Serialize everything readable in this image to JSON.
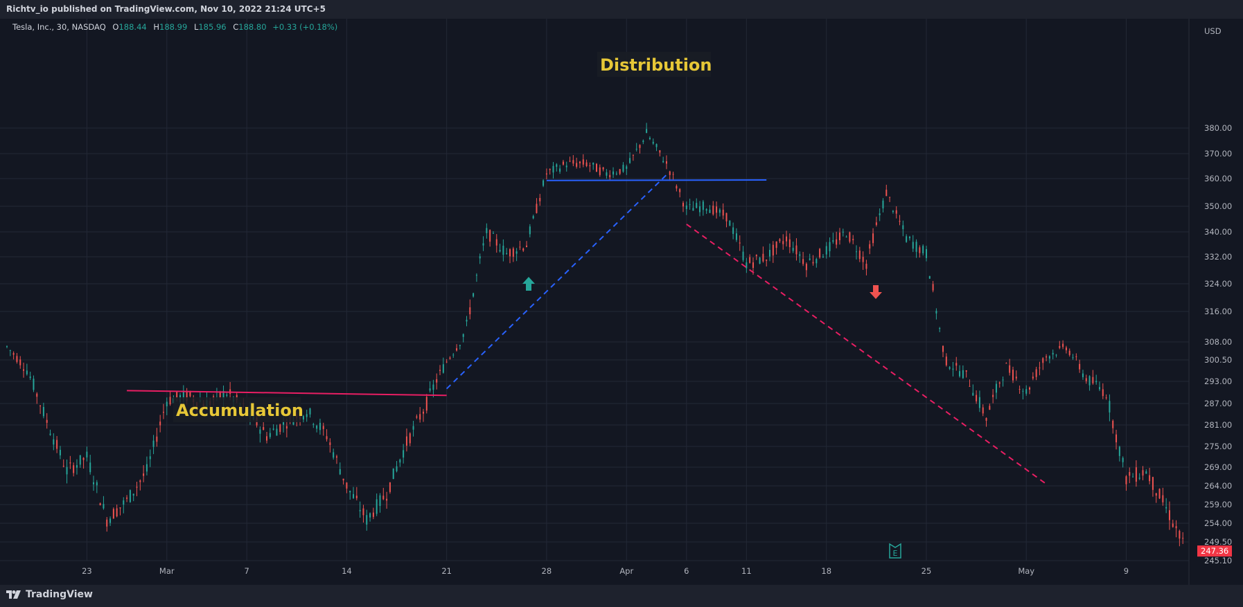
{
  "header": {
    "publisher_line": "Richtv_io published on TradingView.com, Nov 10, 2022 21:24 UTC+5"
  },
  "legend": {
    "symbol": "Tesla, Inc., 30, NASDAQ",
    "open_label": "O",
    "open": "188.44",
    "high_label": "H",
    "high": "188.99",
    "low_label": "L",
    "low": "185.96",
    "close_label": "C",
    "close": "188.80",
    "change": "+0.33 (+0.18%)"
  },
  "footer": {
    "brand": "TradingView"
  },
  "colors": {
    "background": "#131722",
    "grid": "#232836",
    "up": "#26a69a",
    "down": "#ef5350",
    "accumulation_line": "#e91e63",
    "distribution_line": "#2962ff",
    "label_text": "#e6c737",
    "price_tag": "#f23645"
  },
  "chart_data": {
    "type": "candlestick",
    "title": "Tesla, Inc., 30, NASDAQ",
    "currency": "USD",
    "y_axis_ticks": [
      "380.00",
      "370.00",
      "360.00",
      "350.00",
      "340.00",
      "332.00",
      "324.00",
      "316.00",
      "308.00",
      "300.50",
      "293.00",
      "287.00",
      "281.00",
      "275.00",
      "269.00",
      "264.00",
      "259.00",
      "254.00",
      "249.50",
      "245.10"
    ],
    "x_axis_ticks": [
      "23",
      "Mar",
      "7",
      "14",
      "21",
      "28",
      "Apr",
      "6",
      "11",
      "18",
      "25",
      "May",
      "9"
    ],
    "last_price": "247.36",
    "grid": true,
    "price_path": [
      {
        "t": "Feb 17",
        "price": 306
      },
      {
        "t": "Feb 18",
        "price": 297
      },
      {
        "t": "Feb 21",
        "price": 282
      },
      {
        "t": "Feb 22",
        "price": 268
      },
      {
        "t": "Feb 23",
        "price": 272
      },
      {
        "t": "Feb 24",
        "price": 255
      },
      {
        "t": "Feb 25",
        "price": 260
      },
      {
        "t": "Feb 28",
        "price": 268
      },
      {
        "t": "Mar 1",
        "price": 288
      },
      {
        "t": "Mar 2",
        "price": 289
      },
      {
        "t": "Mar 3",
        "price": 287
      },
      {
        "t": "Mar 4",
        "price": 290
      },
      {
        "t": "Mar 7",
        "price": 285
      },
      {
        "t": "Mar 8",
        "price": 278
      },
      {
        "t": "Mar 9",
        "price": 282
      },
      {
        "t": "Mar 10",
        "price": 285
      },
      {
        "t": "Mar 11",
        "price": 278
      },
      {
        "t": "Mar 14",
        "price": 264
      },
      {
        "t": "Mar 15",
        "price": 255
      },
      {
        "t": "Mar 16",
        "price": 262
      },
      {
        "t": "Mar 17",
        "price": 276
      },
      {
        "t": "Mar 18",
        "price": 287
      },
      {
        "t": "Mar 21",
        "price": 300
      },
      {
        "t": "Mar 22",
        "price": 312
      },
      {
        "t": "Mar 23",
        "price": 340
      },
      {
        "t": "Mar 24",
        "price": 333
      },
      {
        "t": "Mar 25",
        "price": 336
      },
      {
        "t": "Mar 28",
        "price": 362
      },
      {
        "t": "Mar 29",
        "price": 366
      },
      {
        "t": "Mar 30",
        "price": 366
      },
      {
        "t": "Mar 31",
        "price": 362
      },
      {
        "t": "Apr 1",
        "price": 364
      },
      {
        "t": "Apr 4",
        "price": 378
      },
      {
        "t": "Apr 5",
        "price": 366
      },
      {
        "t": "Apr 6",
        "price": 349
      },
      {
        "t": "Apr 7",
        "price": 350
      },
      {
        "t": "Apr 8",
        "price": 346
      },
      {
        "t": "Apr 11",
        "price": 330
      },
      {
        "t": "Apr 12",
        "price": 332
      },
      {
        "t": "Apr 13",
        "price": 338
      },
      {
        "t": "Apr 14",
        "price": 330
      },
      {
        "t": "Apr 18",
        "price": 334
      },
      {
        "t": "Apr 19",
        "price": 340
      },
      {
        "t": "Apr 20",
        "price": 330
      },
      {
        "t": "Apr 21",
        "price": 355
      },
      {
        "t": "Apr 22",
        "price": 338
      },
      {
        "t": "Apr 25",
        "price": 333
      },
      {
        "t": "Apr 26",
        "price": 300
      },
      {
        "t": "Apr 27",
        "price": 295
      },
      {
        "t": "Apr 28",
        "price": 283
      },
      {
        "t": "Apr 29",
        "price": 298
      },
      {
        "t": "May 2",
        "price": 290
      },
      {
        "t": "May 3",
        "price": 302
      },
      {
        "t": "May 4",
        "price": 306
      },
      {
        "t": "May 5",
        "price": 294
      },
      {
        "t": "May 6",
        "price": 290
      },
      {
        "t": "May 9",
        "price": 266
      },
      {
        "t": "May 10",
        "price": 268
      },
      {
        "t": "May 11",
        "price": 258
      },
      {
        "t": "May 12",
        "price": 247
      }
    ],
    "annotations": [
      {
        "id": "accumulation",
        "text": "Accumulation"
      },
      {
        "id": "distribution",
        "text": "Distribution"
      },
      {
        "id": "earnings-marker",
        "text": "E"
      }
    ],
    "drawings": [
      {
        "id": "accumulation-line",
        "style": "solid",
        "color": "#e91e63",
        "from": {
          "t": "Feb 25",
          "price": 290.5
        },
        "to": {
          "t": "Mar 21",
          "price": 289.2
        }
      },
      {
        "id": "distribution-line",
        "style": "solid",
        "color": "#2962ff",
        "from": {
          "t": "Mar 28",
          "price": 359.3
        },
        "to": {
          "t": "Apr 12",
          "price": 359.5
        }
      },
      {
        "id": "rise-trendline",
        "style": "dashed",
        "color": "#2962ff",
        "from": {
          "t": "Mar 21",
          "price": 291
        },
        "to": {
          "t": "Apr 5",
          "price": 361.5
        }
      },
      {
        "id": "fall-trendline",
        "style": "dashed",
        "color": "#e91e63",
        "from": {
          "t": "Apr 6",
          "price": 343
        },
        "to": {
          "t": "May 3",
          "price": 264.5
        }
      }
    ]
  }
}
